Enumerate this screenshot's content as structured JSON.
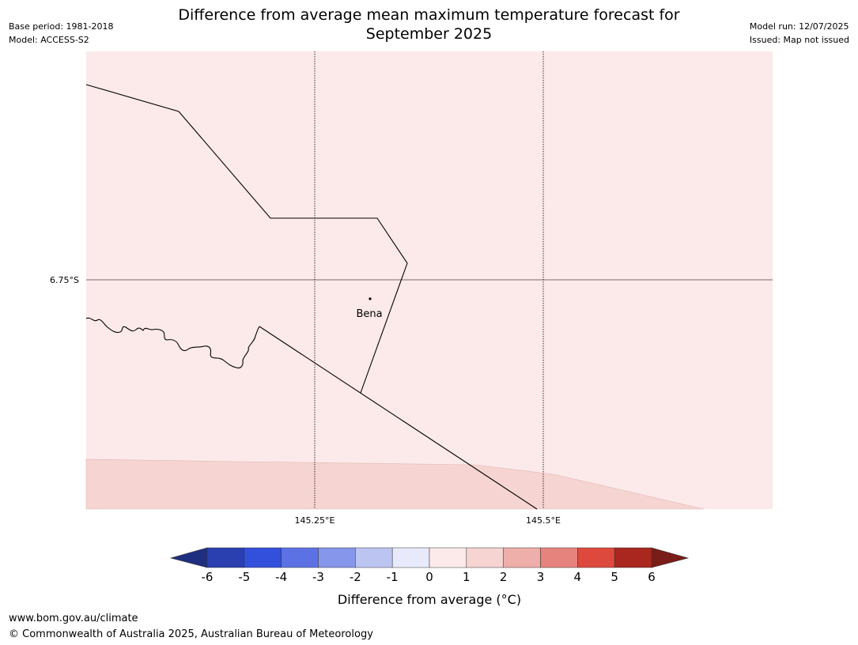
{
  "header": {
    "title_line1": "Difference from average mean maximum temperature forecast for",
    "title_line2": "September 2025",
    "base_period": "Base period: 1981-2018",
    "model": "Model: ACCESS-S2",
    "model_run": "Model run: 12/07/2025",
    "issued": "Issued: Map not issued"
  },
  "map": {
    "latitude_label": "6.75°S",
    "longitude_labels": [
      "145.25°E",
      "145.5°E"
    ],
    "place": "Bena",
    "fill_colors": {
      "zero_to_one": "#fbeae9",
      "one_to_two": "#f5d4d2"
    }
  },
  "legend": {
    "ticks": [
      "-6",
      "-5",
      "-4",
      "-3",
      "-2",
      "-1",
      "0",
      "1",
      "2",
      "3",
      "4",
      "5",
      "6"
    ],
    "label": "Difference from average (°C)",
    "under_color": "#1f2f80",
    "over_color": "#7a1c17",
    "colors": [
      "#2a3fb0",
      "#3350dd",
      "#5c72e4",
      "#8696ea",
      "#bcc4f2",
      "#e8eafc",
      "#fbeae9",
      "#f5d4d2",
      "#eeaea9",
      "#e6837d",
      "#dd4a3d",
      "#a9271e"
    ]
  },
  "footer": {
    "url": "www.bom.gov.au/climate",
    "copyright": "© Commonwealth of Australia 2025, Australian Bureau of Meteorology"
  }
}
